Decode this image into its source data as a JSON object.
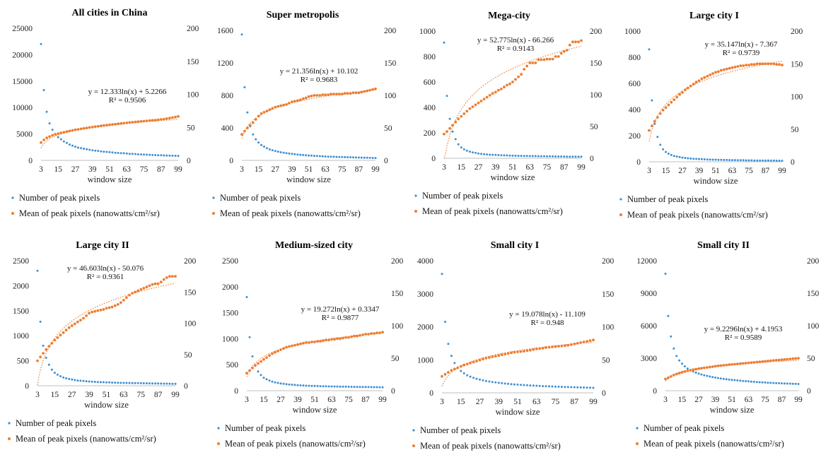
{
  "colors": {
    "count": "#3f8fd2",
    "mean": "#ed7d31",
    "axis": "#bfbfbf"
  },
  "legend": {
    "count_label": "Number of peak pixels",
    "mean_label": "Mean of peak pixels (nanowatts/cm²/sr)"
  },
  "chart_data": [
    {
      "type": "scatter",
      "title": "All cities in China",
      "xlabel": "window size",
      "x_ticks": [
        3,
        15,
        27,
        39,
        51,
        63,
        75,
        87,
        99
      ],
      "x_extra_ticks": [
        99
      ],
      "y_left_ticks": [
        0,
        5000,
        10000,
        15000,
        20000,
        25000
      ],
      "y_right_ticks": [
        0,
        50,
        100,
        150,
        200
      ],
      "y_left_lim": [
        0,
        25000
      ],
      "y_right_lim": [
        0,
        200
      ],
      "count_points": [
        22000,
        13300,
        9200,
        7000,
        5800,
        5000,
        4400,
        4000,
        3600,
        3300,
        3000,
        2800,
        2600,
        2400,
        2300,
        2200,
        2100,
        2000,
        1900,
        1850,
        1800,
        1700,
        1650,
        1600,
        1550,
        1500,
        1450,
        1400,
        1380,
        1350,
        1300,
        1250,
        1230,
        1200,
        1150,
        1120,
        1100,
        1080,
        1050,
        1020,
        1000,
        980,
        960,
        940,
        920,
        900,
        880,
        870,
        860
      ],
      "mean_points": [
        27,
        31,
        34,
        36,
        38,
        39.5,
        40.5,
        41.5,
        42.5,
        43.5,
        44.5,
        45.5,
        46.3,
        47,
        47.7,
        48.4,
        49.1,
        49.8,
        50.4,
        51,
        51.6,
        52.2,
        52.8,
        53.3,
        53.8,
        54.3,
        54.8,
        55.3,
        55.8,
        56.3,
        56.8,
        57.3,
        57.8,
        58.2,
        58.6,
        59,
        59.4,
        59.8,
        60.2,
        60.6,
        61,
        61.5,
        62,
        62.5,
        63.2,
        64,
        64.8,
        65.6,
        66.5
      ],
      "fit": {
        "a": 12.333,
        "b": 5.2266
      },
      "equation": "y = 12.333ln(x) + 5.2266",
      "r2": "R² = 0.9506"
    },
    {
      "type": "scatter",
      "title": "Super metropolis",
      "xlabel": "window size",
      "x_ticks": [
        3,
        15,
        27,
        39,
        51,
        63,
        75,
        87,
        99
      ],
      "x_extra_ticks": [
        99
      ],
      "y_left_ticks": [
        0,
        400,
        800,
        1200,
        1600
      ],
      "y_right_ticks": [
        0,
        50,
        100,
        150,
        200
      ],
      "y_left_lim": [
        0,
        1600
      ],
      "y_right_lim": [
        0,
        200
      ],
      "count_points": [
        1550,
        900,
        590,
        420,
        320,
        260,
        220,
        190,
        170,
        150,
        135,
        125,
        115,
        108,
        100,
        95,
        90,
        85,
        80,
        76,
        72,
        69,
        66,
        63,
        60,
        58,
        56,
        54,
        52,
        50,
        48,
        46,
        45,
        44,
        43,
        42,
        41,
        40,
        39,
        38,
        37,
        36,
        35,
        34,
        33,
        32,
        31,
        30,
        30
      ],
      "mean_points": [
        40,
        45,
        50,
        54,
        58,
        63,
        68,
        72,
        74,
        76,
        78,
        80,
        82,
        83,
        84,
        85,
        86,
        88,
        90,
        91,
        92,
        93,
        95,
        96,
        98,
        99,
        100,
        100,
        100,
        101,
        101,
        101,
        102,
        102,
        102,
        102,
        102,
        103,
        103,
        103,
        104,
        104,
        104,
        105,
        106,
        107,
        108,
        109,
        110
      ],
      "fit": {
        "a": 21.356,
        "b": 10.102
      },
      "equation": "y = 21.356ln(x) + 10.102",
      "r2": "R² = 0.9683"
    },
    {
      "type": "scatter",
      "title": "Mega-city",
      "xlabel": "window size",
      "x_ticks": [
        3,
        15,
        27,
        39,
        51,
        63,
        75,
        87,
        99
      ],
      "x_extra_ticks": [
        99
      ],
      "y_left_ticks": [
        0,
        200,
        400,
        600,
        800,
        1000
      ],
      "y_right_ticks": [
        0,
        50,
        100,
        150,
        200
      ],
      "y_left_lim": [
        0,
        1000
      ],
      "y_right_lim": [
        0,
        200
      ],
      "count_points": [
        910,
        490,
        310,
        210,
        150,
        110,
        85,
        70,
        60,
        52,
        46,
        42,
        38,
        35,
        32,
        30,
        28,
        27,
        26,
        25,
        24,
        23,
        22,
        21,
        20,
        20,
        19,
        19,
        18,
        18,
        17,
        17,
        17,
        16,
        16,
        16,
        15,
        15,
        15,
        14,
        14,
        14,
        14,
        13,
        13,
        13,
        13,
        12,
        12
      ],
      "mean_points": [
        38,
        42,
        47,
        52,
        57,
        62,
        66,
        70,
        74,
        78,
        81,
        84,
        87,
        90,
        93,
        96,
        99,
        102,
        104,
        107,
        109,
        112,
        115,
        117,
        120,
        124,
        128,
        132,
        140,
        145,
        150,
        150,
        150,
        155,
        155,
        155,
        156,
        156,
        156,
        160,
        160,
        165,
        168,
        170,
        178,
        183,
        183,
        183,
        185
      ],
      "fit": {
        "a": 52.775,
        "b": -66.266
      },
      "equation": "y = 52.775ln(x) - 66.266",
      "r2": "R² = 0.9143"
    },
    {
      "type": "scatter",
      "title": "Large city I",
      "xlabel": "window size",
      "x_ticks": [
        3,
        15,
        27,
        39,
        51,
        63,
        75,
        87,
        99
      ],
      "x_extra_ticks": [
        99
      ],
      "y_left_ticks": [
        0,
        200,
        400,
        600,
        800,
        1000
      ],
      "y_right_ticks": [
        0,
        50,
        100,
        150,
        200
      ],
      "y_left_lim": [
        0,
        1000
      ],
      "y_right_lim": [
        0,
        200
      ],
      "count_points": [
        860,
        470,
        290,
        190,
        130,
        95,
        75,
        62,
        52,
        45,
        40,
        36,
        32,
        29,
        27,
        25,
        23,
        22,
        21,
        20,
        19,
        18,
        17,
        16,
        16,
        15,
        15,
        14,
        14,
        13,
        13,
        13,
        12,
        12,
        12,
        11,
        11,
        11,
        10,
        10,
        10,
        10,
        9,
        9,
        9,
        9,
        8,
        8,
        8
      ],
      "mean_points": [
        48,
        55,
        62,
        68,
        74,
        79,
        83,
        87,
        91,
        95,
        99,
        103,
        106,
        110,
        113,
        116,
        119,
        122,
        124,
        127,
        129,
        131,
        133,
        135,
        137,
        138,
        140,
        141,
        142,
        143,
        144,
        145,
        146,
        147,
        147,
        148,
        148,
        149,
        149,
        150,
        150,
        150,
        150,
        150,
        150,
        150,
        149,
        149,
        148
      ],
      "fit": {
        "a": 35.147,
        "b": -7.367
      },
      "equation": "y = 35.147ln(x) - 7.367",
      "r2": "R² = 0.9739"
    },
    {
      "type": "scatter",
      "title": "Large city II",
      "xlabel": "window size",
      "x_ticks": [
        3,
        15,
        27,
        39,
        51,
        63,
        75,
        87,
        99
      ],
      "x_extra_ticks": [
        99
      ],
      "y_left_ticks": [
        0,
        500,
        1000,
        1500,
        2000,
        2500
      ],
      "y_right_ticks": [
        0,
        50,
        100,
        150,
        200
      ],
      "y_left_lim": [
        0,
        2500
      ],
      "y_right_lim": [
        0,
        200
      ],
      "count_points": [
        2300,
        1280,
        800,
        560,
        420,
        320,
        260,
        220,
        190,
        165,
        150,
        135,
        125,
        115,
        105,
        100,
        95,
        90,
        85,
        80,
        78,
        75,
        72,
        70,
        68,
        66,
        64,
        62,
        60,
        58,
        57,
        56,
        55,
        54,
        53,
        52,
        51,
        50,
        49,
        48,
        47,
        46,
        45,
        44,
        43,
        42,
        41,
        40,
        40
      ],
      "mean_points": [
        40,
        46,
        52,
        58,
        63,
        68,
        73,
        77,
        81,
        85,
        89,
        93,
        96,
        99,
        102,
        105,
        108,
        112,
        116,
        118,
        119,
        120,
        121,
        122,
        124,
        125,
        126,
        128,
        130,
        133,
        137,
        141,
        145,
        148,
        150,
        152,
        154,
        156,
        158,
        160,
        162,
        163,
        163,
        166,
        170,
        173,
        175,
        175,
        175
      ],
      "fit": {
        "a": 46.603,
        "b": -50.076
      },
      "equation": "y = 46.603ln(x) - 50.076",
      "r2": "R² = 0.9361"
    },
    {
      "type": "scatter",
      "title": "Medium-sized city",
      "xlabel": "window size",
      "x_ticks": [
        3,
        15,
        27,
        39,
        51,
        63,
        75,
        87,
        99
      ],
      "x_extra_ticks": [
        99
      ],
      "y_left_ticks": [
        0,
        500,
        1000,
        1500,
        2000,
        2500
      ],
      "y_right_ticks": [
        0,
        50,
        100,
        150,
        200
      ],
      "y_left_lim": [
        0,
        2500
      ],
      "y_right_lim": [
        0,
        200
      ],
      "count_points": [
        1800,
        1030,
        660,
        480,
        370,
        300,
        250,
        220,
        195,
        175,
        160,
        150,
        140,
        132,
        125,
        120,
        115,
        110,
        106,
        103,
        100,
        97,
        95,
        93,
        91,
        89,
        87,
        85,
        84,
        83,
        82,
        81,
        80,
        79,
        78,
        77,
        76,
        75,
        74,
        73,
        72,
        71,
        70,
        70,
        69,
        68,
        68,
        67,
        67
      ],
      "mean_points": [
        27,
        31,
        35,
        39,
        42,
        45,
        48,
        51,
        54,
        57,
        59,
        61,
        63,
        65,
        67,
        68,
        69,
        70,
        71,
        72,
        73,
        74,
        74,
        75,
        75,
        76,
        76,
        77,
        78,
        78,
        79,
        79,
        80,
        80,
        81,
        82,
        82,
        83,
        84,
        84,
        85,
        86,
        87,
        87,
        88,
        88,
        89,
        89,
        90
      ],
      "fit": {
        "a": 19.272,
        "b": 0.3347
      },
      "equation": "y = 19.272ln(x) + 0.3347",
      "r2": "R² = 0.9877"
    },
    {
      "type": "scatter",
      "title": "Small city I",
      "xlabel": "window size",
      "x_ticks": [
        3,
        15,
        27,
        39,
        51,
        63,
        75,
        87,
        99
      ],
      "x_extra_ticks": [
        99
      ],
      "y_left_ticks": [
        0,
        1000,
        2000,
        3000,
        4000
      ],
      "y_right_ticks": [
        0,
        50,
        100,
        150,
        200
      ],
      "y_left_lim": [
        0,
        4000
      ],
      "y_right_lim": [
        0,
        200
      ],
      "count_points": [
        3600,
        2150,
        1480,
        1120,
        900,
        760,
        660,
        590,
        530,
        490,
        455,
        425,
        400,
        378,
        360,
        343,
        328,
        315,
        302,
        291,
        281,
        272,
        263,
        255,
        248,
        241,
        235,
        229,
        223,
        218,
        213,
        208,
        204,
        200,
        196,
        192,
        188,
        185,
        182,
        178,
        175,
        172,
        169,
        166,
        163,
        160,
        158,
        155,
        152
      ],
      "mean_points": [
        25,
        28,
        31,
        34,
        36,
        38,
        40,
        42,
        43.5,
        45,
        46.5,
        48,
        49.5,
        51,
        52.5,
        53.5,
        54.5,
        55.5,
        56.5,
        57.5,
        58.5,
        59.5,
        60.5,
        61.5,
        62,
        62.5,
        63,
        64,
        64.5,
        65.5,
        66.5,
        67,
        67.5,
        68.5,
        69,
        69.5,
        70,
        70.5,
        71,
        71.5,
        72,
        73,
        74,
        75,
        76,
        77,
        78,
        79,
        80
      ],
      "fit": {
        "a": 19.078,
        "b": -11.109
      },
      "equation": "y = 19.078ln(x) - 11.109",
      "r2": "R² = 0.948"
    },
    {
      "type": "scatter",
      "title": "Small city II",
      "xlabel": "window size",
      "x_ticks": [
        3,
        15,
        27,
        39,
        51,
        63,
        75,
        87,
        99
      ],
      "x_extra_ticks": [
        99
      ],
      "y_left_ticks": [
        0,
        3000,
        6000,
        9000,
        12000
      ],
      "y_right_ticks": [
        0,
        50,
        100,
        150,
        200
      ],
      "y_left_lim": [
        0,
        12000
      ],
      "y_right_lim": [
        0,
        200
      ],
      "count_points": [
        10800,
        6900,
        5000,
        3900,
        3200,
        2800,
        2500,
        2250,
        2050,
        1900,
        1780,
        1670,
        1580,
        1500,
        1430,
        1370,
        1310,
        1260,
        1210,
        1170,
        1130,
        1090,
        1060,
        1030,
        1000,
        975,
        950,
        925,
        900,
        880,
        860,
        840,
        820,
        800,
        785,
        770,
        755,
        740,
        725,
        710,
        700,
        690,
        680,
        670,
        660,
        650,
        640,
        630,
        620
      ],
      "mean_points": [
        18,
        20,
        22,
        24,
        25.5,
        27,
        28.3,
        29.5,
        30.5,
        31.5,
        32.3,
        33,
        33.8,
        34.5,
        35.2,
        35.8,
        36.4,
        37,
        37.6,
        38.1,
        38.6,
        39.1,
        39.6,
        40,
        40.4,
        40.8,
        41.2,
        41.6,
        42,
        42.4,
        42.8,
        43.2,
        43.6,
        44,
        44.4,
        44.8,
        45.2,
        45.6,
        46,
        46.4,
        46.8,
        47.2,
        47.6,
        48,
        48.4,
        48.8,
        49.2,
        49.6,
        50
      ],
      "fit": {
        "a": 9.2296,
        "b": 4.1953
      },
      "equation": "y = 9.2296ln(x) + 4.1953",
      "r2": "R² = 0.9589"
    }
  ]
}
